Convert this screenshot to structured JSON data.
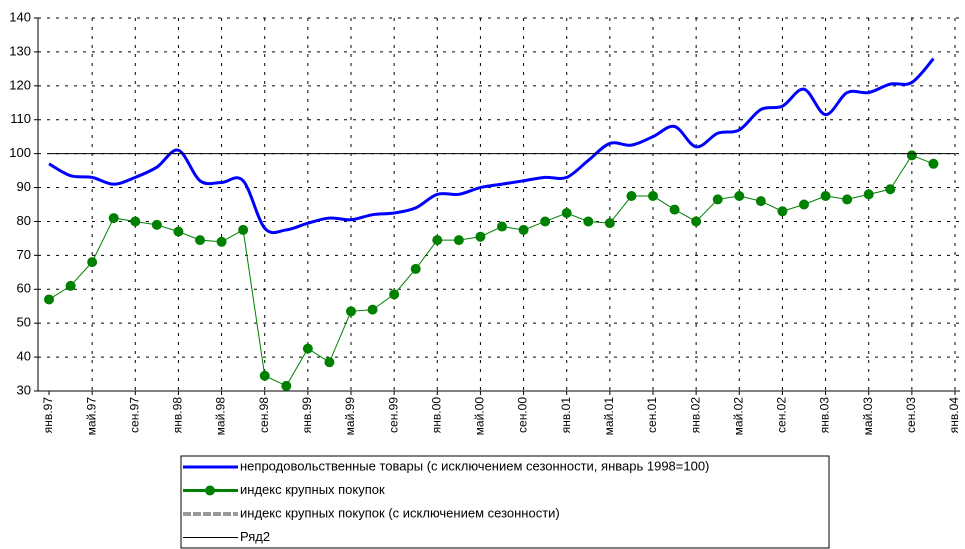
{
  "chart_data": {
    "type": "line",
    "categories": [
      "янв.97",
      null,
      "май.97",
      null,
      "сен.97",
      null,
      "янв.98",
      null,
      "май.98",
      null,
      "сен.98",
      null,
      "янв.99",
      null,
      "май.99",
      null,
      "сен.99",
      null,
      "янв.00",
      null,
      "май.00",
      null,
      "сен.00",
      null,
      "янв.01",
      null,
      "май.01",
      null,
      "сен.01",
      null,
      "янв.02",
      null,
      "май.02",
      null,
      "сен.02",
      null,
      "янв.03",
      null,
      "май.03",
      null,
      "сен.03",
      null,
      "янв.04"
    ],
    "series": [
      {
        "name": "непродовольственные товары (с исключением сезонности, январь 1998=100)",
        "color": "#0000ff",
        "style": "smooth",
        "values": [
          97,
          93.5,
          93,
          91,
          93,
          96,
          101,
          92,
          91.5,
          92,
          78,
          77.5,
          79.5,
          81,
          80.5,
          82,
          82.5,
          84,
          88,
          88,
          90,
          91,
          92,
          93,
          93,
          98,
          103,
          102.5,
          105,
          108,
          102,
          106,
          107,
          113,
          114,
          119,
          111.5,
          118,
          118,
          120.5,
          121,
          128,
          null
        ]
      },
      {
        "name": "индекс крупных покупок",
        "color": "#008000",
        "style": "markers",
        "values": [
          57,
          61,
          68,
          81,
          80,
          79,
          77,
          74.5,
          74,
          77.5,
          34.5,
          31.5,
          42.5,
          38.5,
          53.5,
          54,
          58.5,
          66,
          74.5,
          74.5,
          75.5,
          78.5,
          77.5,
          80,
          82.5,
          80,
          79.5,
          87.5,
          87.5,
          83.5,
          80,
          86.5,
          87.5,
          86,
          83,
          85,
          87.5,
          86.5,
          88,
          89.5,
          99.5,
          97,
          null
        ]
      },
      {
        "name": "индекс крупных покупок (с исключением сезонности)",
        "color": "#999999",
        "style": "dashed"
      },
      {
        "name": "Ряд2",
        "color": "#000000",
        "style": "thin",
        "values": [
          100,
          100,
          100,
          100,
          100,
          100,
          100,
          100,
          100,
          100,
          100,
          100,
          100,
          100,
          100,
          100,
          100,
          100,
          100,
          100,
          100,
          100,
          100,
          100,
          100,
          100,
          100,
          100,
          100,
          100,
          100,
          100,
          100,
          100,
          100,
          100,
          100,
          100,
          100,
          100,
          100,
          100,
          100
        ]
      }
    ],
    "ylim": [
      30,
      140
    ],
    "yticks": [
      30,
      40,
      50,
      60,
      70,
      80,
      90,
      100,
      110,
      120,
      130,
      140
    ],
    "grid": true,
    "legend": "bottom"
  }
}
